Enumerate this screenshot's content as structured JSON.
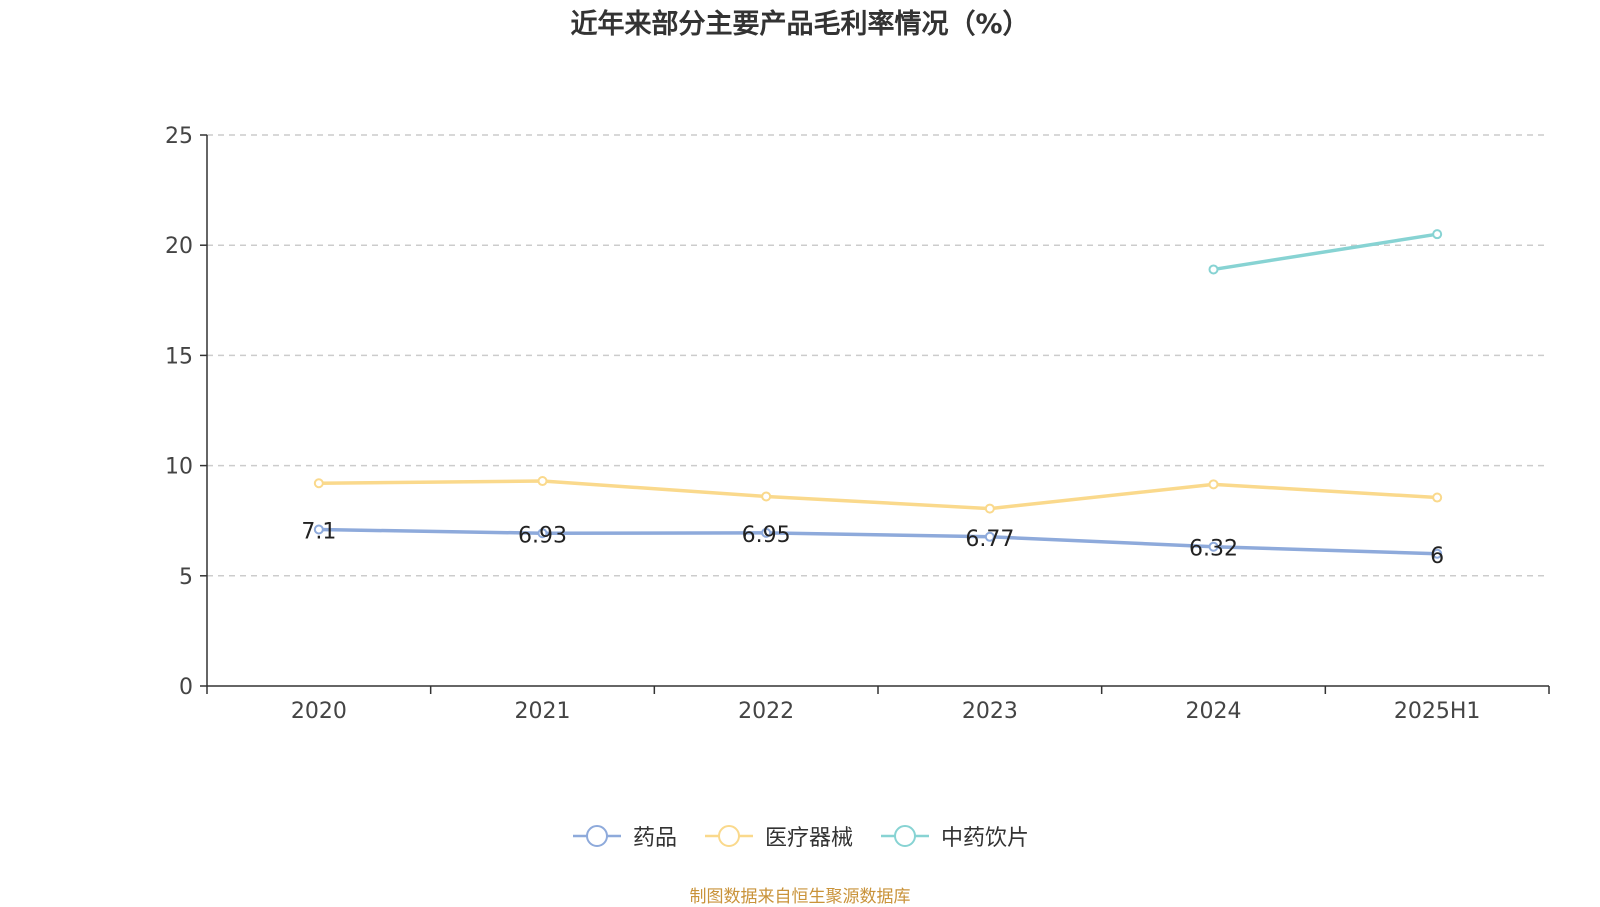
{
  "title": "近年来部分主要产品毛利率情况（%）",
  "source": "制图数据来自恒生聚源数据库",
  "chart_data": {
    "type": "line",
    "title": "近年来部分主要产品毛利率情况（%）",
    "categories": [
      "2020",
      "2021",
      "2022",
      "2023",
      "2024",
      "2025H1"
    ],
    "ylim": [
      0,
      25
    ],
    "yticks": [
      0,
      5,
      10,
      15,
      20,
      25
    ],
    "grid": true,
    "legend_position": "bottom",
    "series": [
      {
        "name": "药品",
        "color": "#8eaadb",
        "values": [
          7.1,
          6.93,
          6.95,
          6.77,
          6.32,
          6
        ],
        "labels": [
          "7.1",
          "6.93",
          "6.95",
          "6.77",
          "6.32",
          "6"
        ]
      },
      {
        "name": "医疗器械",
        "color": "#fad98c",
        "values": [
          9.2,
          9.3,
          8.6,
          8.05,
          9.15,
          8.55
        ],
        "labels": null
      },
      {
        "name": "中药饮片",
        "color": "#87d3d3",
        "values": [
          null,
          null,
          null,
          null,
          18.9,
          20.5
        ],
        "labels": null
      }
    ]
  }
}
